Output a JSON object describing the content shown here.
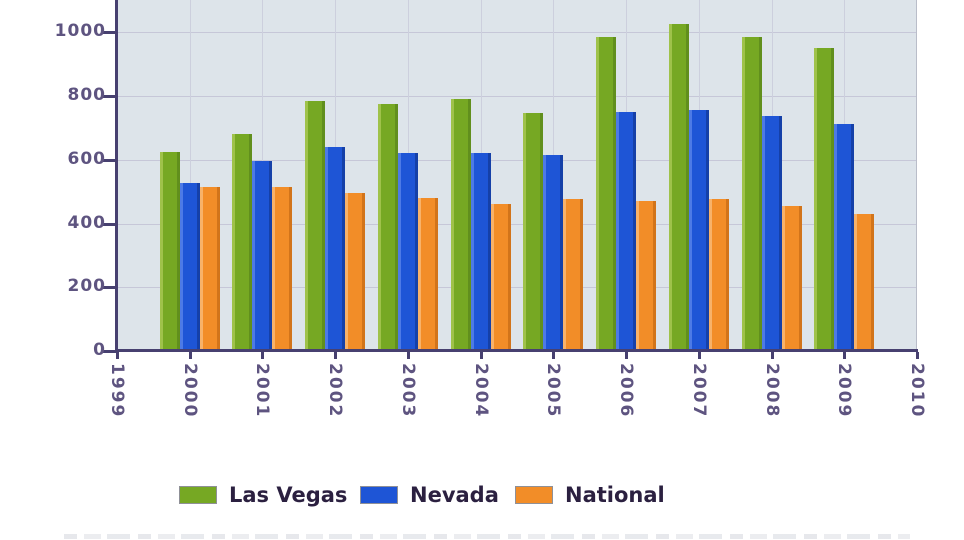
{
  "chart_data": {
    "type": "bar",
    "title": "",
    "xlabel": "",
    "ylabel": "",
    "categories": [
      "2000",
      "2001",
      "2002",
      "2003",
      "2004",
      "2005",
      "2006",
      "2007",
      "2008",
      "2009"
    ],
    "series": [
      {
        "name": "Las Vegas",
        "color": "#76a823",
        "color_light": "#9fc24a",
        "color_dark": "#618f1d",
        "values": [
          620,
          675,
          780,
          770,
          785,
          740,
          980,
          1020,
          980,
          945
        ]
      },
      {
        "name": "Nevada",
        "color": "#1e55d6",
        "color_light": "#4d7ae6",
        "color_dark": "#1540a8",
        "values": [
          520,
          590,
          635,
          615,
          615,
          610,
          745,
          750,
          730,
          705
        ]
      },
      {
        "name": "National",
        "color": "#f28d28",
        "color_light": "#f8b express",
        "color_light2": "#f8b269",
        "color_dark": "#d2741a",
        "values": [
          510,
          510,
          490,
          475,
          455,
          470,
          465,
          470,
          450,
          425
        ]
      }
    ],
    "x_ticks": [
      "1999",
      "2000",
      "2001",
      "2002",
      "2003",
      "2004",
      "2005",
      "2006",
      "2007",
      "2008",
      "2009",
      "2010"
    ],
    "y_ticks": [
      0,
      200,
      400,
      600,
      800,
      1000
    ],
    "y_axis_top_value": 1102,
    "grid": true,
    "legend_position": "bottom",
    "legend_entries": [
      "Las Vegas",
      "Nevada",
      "National"
    ]
  },
  "colors": {
    "plot_background": "#dde4ea",
    "gridline": "#c6c7d8",
    "axis": "#474070",
    "tick_label": "#5e5480",
    "legend_text": "#2b2040",
    "page_background": "#ffffff"
  }
}
